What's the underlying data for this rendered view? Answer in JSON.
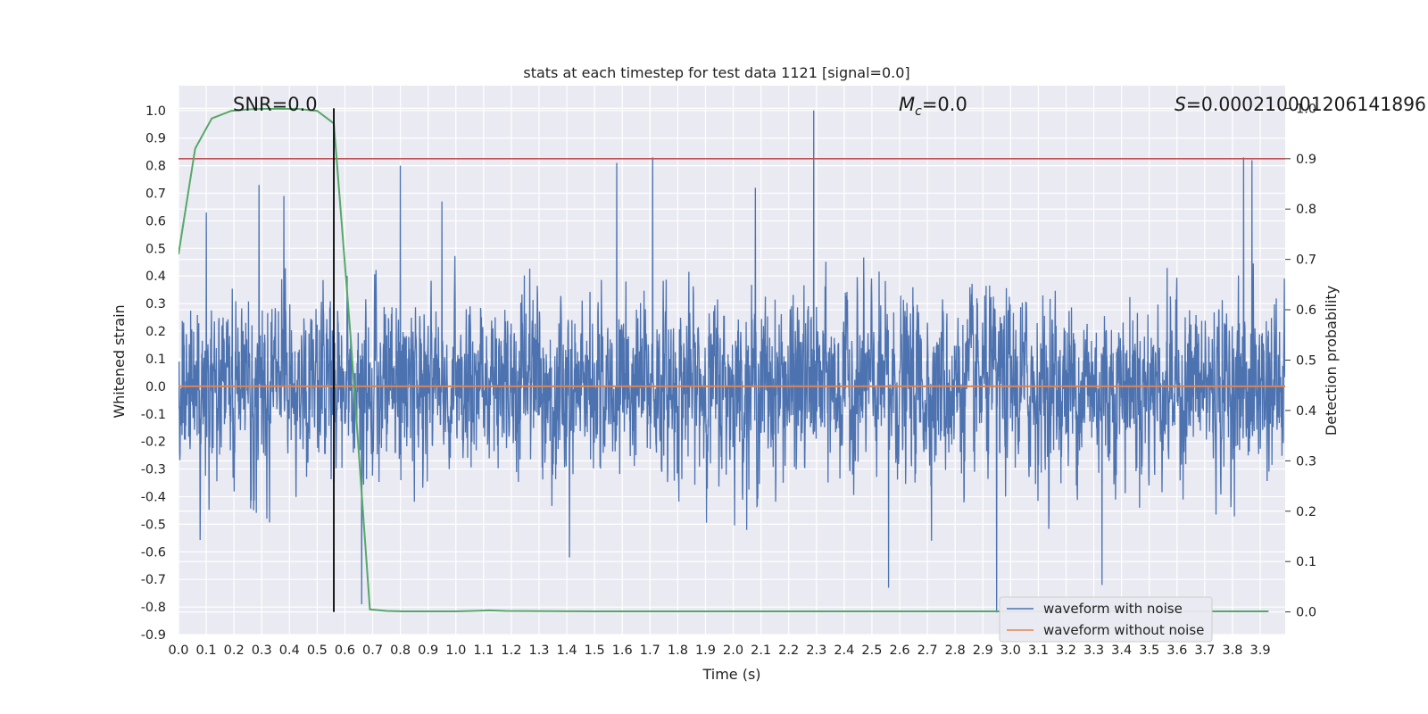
{
  "chart_data": {
    "type": "line",
    "title": "stats at each timestep for test data 1121 [signal=0.0]",
    "xlabel": "Time (s)",
    "ylabel": "Whitened strain",
    "y2label": "Detection probability",
    "xlim": [
      0.0,
      3.99
    ],
    "ylim": [
      -0.9,
      1.09
    ],
    "y2lim": [
      -0.045,
      1.045
    ],
    "x_ticks": [
      "0.0",
      "0.1",
      "0.2",
      "0.3",
      "0.4",
      "0.5",
      "0.6",
      "0.7",
      "0.8",
      "0.9",
      "1.0",
      "1.1",
      "1.2",
      "1.3",
      "1.4",
      "1.5",
      "1.6",
      "1.7",
      "1.8",
      "1.9",
      "2.0",
      "2.1",
      "2.2",
      "2.3",
      "2.4",
      "2.5",
      "2.6",
      "2.7",
      "2.8",
      "2.9",
      "3.0",
      "3.1",
      "3.2",
      "3.3",
      "3.4",
      "3.5",
      "3.6",
      "3.7",
      "3.8",
      "3.9"
    ],
    "y_ticks": [
      "1.0",
      "0.9",
      "0.8",
      "0.7",
      "0.6",
      "0.5",
      "0.4",
      "0.3",
      "0.2",
      "0.1",
      "0.0",
      "-0.1",
      "-0.2",
      "-0.3",
      "-0.4",
      "-0.5",
      "-0.6",
      "-0.7",
      "-0.8",
      "-0.9"
    ],
    "y2_ticks": [
      "1.0",
      "0.9",
      "0.8",
      "0.7",
      "0.6",
      "0.5",
      "0.4",
      "0.3",
      "0.2",
      "0.1",
      "0.0"
    ],
    "annotations": {
      "snr": "SNR=0.0",
      "mc_symbol": "M",
      "mc_sub": "c",
      "mc_value": "=0.0",
      "s_symbol": "S",
      "s_value": "=0.00021000120614189​6"
    },
    "threshold": {
      "value": 0.9,
      "axis": "y2",
      "color": "#c44e52"
    },
    "event_marker": {
      "x": 0.56,
      "color": "#000000"
    },
    "series": [
      {
        "name": "waveform with noise",
        "color": "#4c72b0",
        "noise_sigma": 0.2,
        "notable_peaks": [
          {
            "x": 0.1,
            "y": 0.63
          },
          {
            "x": 0.29,
            "y": 0.73
          },
          {
            "x": 0.38,
            "y": 0.69
          },
          {
            "x": 0.8,
            "y": 0.8
          },
          {
            "x": 0.95,
            "y": 0.67
          },
          {
            "x": 1.58,
            "y": 0.81
          },
          {
            "x": 1.71,
            "y": 0.83
          },
          {
            "x": 2.08,
            "y": 0.72
          },
          {
            "x": 2.29,
            "y": 1.0
          },
          {
            "x": 3.84,
            "y": 0.83
          },
          {
            "x": 3.87,
            "y": 0.82
          },
          {
            "x": 1.41,
            "y": -0.62
          },
          {
            "x": 2.56,
            "y": -0.73
          },
          {
            "x": 2.95,
            "y": -0.82
          },
          {
            "x": 3.33,
            "y": -0.72
          },
          {
            "x": 0.66,
            "y": -0.79
          }
        ]
      },
      {
        "name": "waveform without noise",
        "color": "#dd8452",
        "x": [
          0.0,
          3.99
        ],
        "y": [
          0.0,
          0.0
        ]
      },
      {
        "name": "Detection probability",
        "color": "#55a868",
        "axis": "y2",
        "x": [
          0.0,
          0.06,
          0.12,
          0.19,
          0.25,
          0.31,
          0.37,
          0.43,
          0.5,
          0.56,
          0.62,
          0.69,
          0.75,
          0.81,
          0.87,
          0.93,
          1.0,
          1.06,
          1.12,
          1.18,
          1.5,
          2.0,
          2.5,
          3.0,
          3.5,
          3.93
        ],
        "y": [
          0.71,
          0.92,
          0.98,
          0.995,
          0.998,
          0.999,
          0.999,
          0.999,
          0.995,
          0.97,
          0.55,
          0.005,
          0.002,
          0.001,
          0.001,
          0.001,
          0.001,
          0.002,
          0.003,
          0.002,
          0.001,
          0.001,
          0.001,
          0.001,
          0.001,
          0.001
        ]
      }
    ],
    "legend": {
      "position": "lower-right",
      "entries": [
        "waveform with noise",
        "waveform without noise"
      ]
    },
    "grid": true
  }
}
